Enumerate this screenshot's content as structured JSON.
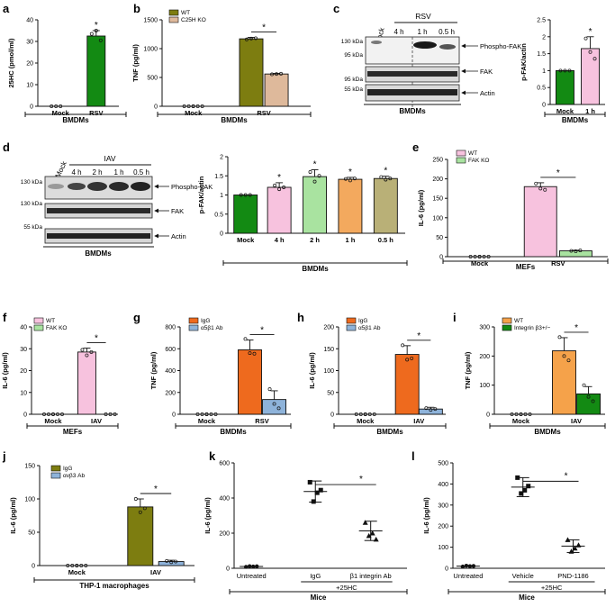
{
  "figure": {
    "panels": [
      {
        "id": "a",
        "label": "a"
      },
      {
        "id": "b",
        "label": "b"
      },
      {
        "id": "c",
        "label": "c"
      },
      {
        "id": "d",
        "label": "d"
      },
      {
        "id": "e",
        "label": "e"
      },
      {
        "id": "f",
        "label": "f"
      },
      {
        "id": "g",
        "label": "g"
      },
      {
        "id": "h",
        "label": "h"
      },
      {
        "id": "i",
        "label": "i"
      },
      {
        "id": "j",
        "label": "j"
      },
      {
        "id": "k",
        "label": "k"
      },
      {
        "id": "l",
        "label": "l"
      }
    ],
    "blots": {
      "c": {
        "group_header": "RSV",
        "lane_labels": [
          "Mock",
          "4 h",
          "1 h",
          "0.5 h"
        ],
        "kda_labels": [
          "130 kDa",
          "95 kDa",
          "95 kDa",
          "55 kDa"
        ],
        "band_labels": [
          "Phospho-FAK",
          "FAK",
          "Actin"
        ],
        "footer": "BMDMs"
      },
      "d": {
        "group_header": "IAV",
        "lane_labels": [
          "Mock",
          "4 h",
          "2 h",
          "1 h",
          "0.5 h"
        ],
        "kda_labels": [
          "130 kDa",
          "130 kDa",
          "55 kDa"
        ],
        "band_labels": [
          "Phospho-FAK",
          "FAK",
          "Actin"
        ],
        "footer": "BMDMs"
      }
    }
  },
  "chart_data": [
    {
      "panel": "a",
      "type": "bar",
      "ylabel": "25HC (pmol/ml)",
      "ylim": [
        0,
        40
      ],
      "ticks": [
        0,
        10,
        20,
        30,
        40
      ],
      "categories": [
        "Mock",
        "RSV"
      ],
      "xlabel": "BMDMs",
      "series": [
        {
          "name": "",
          "color": "#138a13",
          "values": [
            0,
            32.5
          ],
          "err": [
            0,
            2.5
          ],
          "points": [
            [
              0,
              0,
              0
            ],
            [
              33.5,
              35,
              30.5
            ]
          ]
        }
      ],
      "significance": "*"
    },
    {
      "panel": "b",
      "type": "bar",
      "ylabel": "TNF (pg/ml)",
      "ylim": [
        0,
        1500
      ],
      "ticks": [
        0,
        500,
        1000,
        1500
      ],
      "categories": [
        "Mock",
        "RSV"
      ],
      "xlabel": "BMDMs",
      "series": [
        {
          "name": "WT",
          "color": "#7d7d10",
          "values": [
            0,
            1170
          ],
          "err": [
            0,
            25
          ],
          "points": [
            [
              0,
              0,
              0
            ],
            [
              1160,
              1175,
              1180
            ]
          ]
        },
        {
          "name": "C25H KO",
          "color": "#deb99b",
          "values": [
            0,
            560
          ],
          "err": [
            0,
            10
          ],
          "points": [
            [
              0,
              0,
              0
            ],
            [
              555,
              560,
              565
            ]
          ]
        }
      ],
      "significance": "*"
    },
    {
      "panel": "c",
      "type": "bar",
      "ylabel": "p-FAK/actin",
      "ylim": [
        0,
        2.5
      ],
      "ticks": [
        0,
        0.5,
        1,
        1.5,
        2,
        2.5
      ],
      "categories": [
        "Mock",
        "1 h"
      ],
      "xlabel": "BMDMs",
      "series": [
        {
          "name": "",
          "color": [
            "#138a13",
            "#f7c2de"
          ],
          "values": [
            1,
            1.65
          ],
          "err": [
            0,
            0.35
          ],
          "points": [
            [
              1,
              1,
              1
            ],
            [
              1.95,
              1.55,
              1.35
            ]
          ]
        }
      ],
      "significance": "*"
    },
    {
      "panel": "d",
      "type": "bar",
      "ylabel": "p-FAK/actin",
      "ylim": [
        0,
        2
      ],
      "ticks": [
        0,
        0.5,
        1,
        1.5,
        2
      ],
      "categories": [
        "Mock",
        "4 h",
        "2 h",
        "1 h",
        "0.5 h"
      ],
      "xlabel": "BMDMs",
      "series": [
        {
          "name": "",
          "color": [
            "#138a13",
            "#f7c2de",
            "#a9e3a0",
            "#f3a95e",
            "#b9b077"
          ],
          "values": [
            1,
            1.2,
            1.48,
            1.41,
            1.43
          ],
          "err": [
            0,
            0.12,
            0.18,
            0.05,
            0.06
          ],
          "points": [
            [
              1,
              1,
              1
            ],
            [
              1.25,
              1.15,
              1.2
            ],
            [
              1.6,
              1.35,
              1.5
            ],
            [
              1.42,
              1.38,
              1.43
            ],
            [
              1.47,
              1.4,
              1.43
            ]
          ]
        }
      ],
      "significance": "*"
    },
    {
      "panel": "e",
      "type": "bar",
      "ylabel": "IL-6 (pg/ml)",
      "ylim": [
        0,
        250
      ],
      "ticks": [
        0,
        50,
        100,
        150,
        200,
        250
      ],
      "categories": [
        "Mock",
        "RSV"
      ],
      "xlabel": "MEFs",
      "series": [
        {
          "name": "WT",
          "color": "#f7c2de",
          "values": [
            0,
            180
          ],
          "err": [
            0,
            10
          ],
          "points": [
            [
              0,
              0,
              0
            ],
            [
              188,
              175,
              172
            ]
          ]
        },
        {
          "name": "FAK KO",
          "color": "#a9e3a0",
          "values": [
            0,
            15
          ],
          "err": [
            0,
            1.5
          ],
          "points": [
            [
              0,
              0,
              0
            ],
            [
              15,
              14,
              16
            ]
          ]
        }
      ],
      "significance": "*"
    },
    {
      "panel": "f",
      "type": "bar",
      "ylabel": "IL-6 (pg/ml)",
      "ylim": [
        0,
        40
      ],
      "ticks": [
        0,
        10,
        20,
        30,
        40
      ],
      "categories": [
        "Mock",
        "IAV"
      ],
      "xlabel": "MEFs",
      "series": [
        {
          "name": "WT",
          "color": "#f7c2de",
          "values": [
            0,
            28.5
          ],
          "err": [
            0,
            1.8
          ],
          "points": [
            [
              0,
              0,
              0
            ],
            [
              29.5,
              27,
              28.5
            ]
          ]
        },
        {
          "name": "FAK KO",
          "color": "#a9e3a0",
          "values": [
            0,
            0
          ],
          "err": [
            0,
            0
          ],
          "points": [
            [
              0,
              0,
              0
            ],
            [
              0,
              0,
              0
            ]
          ]
        }
      ],
      "significance": "*"
    },
    {
      "panel": "g",
      "type": "bar",
      "ylabel": "TNF (pg/ml)",
      "ylim": [
        0,
        800
      ],
      "ticks": [
        0,
        200,
        400,
        600,
        800
      ],
      "categories": [
        "Mock",
        "RSV"
      ],
      "xlabel": "BMDMs",
      "series": [
        {
          "name": "IgG",
          "color": "#ee6a1e",
          "values": [
            0,
            590
          ],
          "err": [
            0,
            90
          ],
          "points": [
            [
              0,
              0,
              0
            ],
            [
              690,
              560,
              555
            ]
          ]
        },
        {
          "name": "α5β1 Ab",
          "color": "#8eb3da",
          "values": [
            0,
            135
          ],
          "err": [
            0,
            80
          ],
          "points": [
            [
              0,
              0,
              0
            ],
            [
              230,
              95,
              55
            ]
          ]
        }
      ],
      "significance": "*"
    },
    {
      "panel": "h",
      "type": "bar",
      "ylabel": "IL-6 (pg/ml)",
      "ylim": [
        0,
        200
      ],
      "ticks": [
        0,
        50,
        100,
        150,
        200
      ],
      "categories": [
        "Mock",
        "IAV"
      ],
      "xlabel": "BMDMs",
      "series": [
        {
          "name": "IgG",
          "color": "#ee6a1e",
          "values": [
            0,
            137
          ],
          "err": [
            0,
            20
          ],
          "points": [
            [
              0,
              0,
              0
            ],
            [
              158,
              125,
              128
            ]
          ]
        },
        {
          "name": "α5β1 Ab",
          "color": "#8eb3da",
          "values": [
            0,
            12
          ],
          "err": [
            0,
            4
          ],
          "points": [
            [
              0,
              0,
              0
            ],
            [
              14,
              10,
              12
            ]
          ]
        }
      ],
      "significance": "*"
    },
    {
      "panel": "i",
      "type": "bar",
      "ylabel": "TNF (pg/ml)",
      "ylim": [
        0,
        300
      ],
      "ticks": [
        0,
        100,
        200,
        300
      ],
      "categories": [
        "Mock",
        "IAV"
      ],
      "xlabel": "BMDMs",
      "series": [
        {
          "name": "WT",
          "color": "#f5a24a",
          "values": [
            0,
            218
          ],
          "err": [
            0,
            45
          ],
          "points": [
            [
              0,
              0,
              0
            ],
            [
              265,
              200,
              185
            ]
          ]
        },
        {
          "name": "Integrin β3+/−",
          "color": "#138a13",
          "values": [
            0,
            70
          ],
          "err": [
            0,
            25
          ],
          "points": [
            [
              0,
              0,
              0
            ],
            [
              100,
              60,
              45
            ]
          ]
        }
      ],
      "significance": "*"
    },
    {
      "panel": "j",
      "type": "bar",
      "ylabel": "IL-6 (pg/ml)",
      "ylim": [
        0,
        150
      ],
      "ticks": [
        0,
        50,
        100,
        150
      ],
      "categories": [
        "Mock",
        "IAV"
      ],
      "xlabel": "THP-1 macrophages",
      "series": [
        {
          "name": "IgG",
          "color": "#7d7d10",
          "values": [
            0,
            88
          ],
          "err": [
            0,
            12
          ],
          "points": [
            [
              0,
              0,
              0
            ],
            [
              100,
              80,
              86
            ]
          ]
        },
        {
          "name": "αvβ3 Ab",
          "color": "#8eb3da",
          "values": [
            0,
            6
          ],
          "err": [
            0,
            2
          ],
          "points": [
            [
              0,
              0,
              0
            ],
            [
              7,
              5,
              6
            ]
          ]
        }
      ],
      "significance": "*"
    },
    {
      "panel": "k",
      "type": "scatter",
      "ylabel": "IL-6 (pg/ml)",
      "ylim": [
        0,
        600
      ],
      "ticks": [
        0,
        200,
        400,
        600
      ],
      "categories": [
        "Untreated",
        "IgG",
        "β1 integrin Ab"
      ],
      "group_label": "+25HC",
      "xlabel": "Mice",
      "markers": [
        "circle",
        "square",
        "triangle"
      ],
      "means": [
        10,
        437,
        213
      ],
      "sd": [
        3,
        60,
        55
      ],
      "points": [
        [
          8,
          10,
          12,
          11
        ],
        [
          490,
          430,
          380,
          445
        ],
        [
          260,
          200,
          185,
          165
        ]
      ],
      "significance": "*"
    },
    {
      "panel": "l",
      "type": "scatter",
      "ylabel": "IL-6 (pg/ml)",
      "ylim": [
        0,
        500
      ],
      "ticks": [
        0,
        100,
        200,
        300,
        400,
        500
      ],
      "categories": [
        "Untreated",
        "Vehicle",
        "PND-1186"
      ],
      "group_label": "+25HC",
      "xlabel": "Mice",
      "markers": [
        "circle",
        "square",
        "triangle"
      ],
      "means": [
        10,
        385,
        105
      ],
      "sd": [
        3,
        45,
        30
      ],
      "points": [
        [
          8,
          10,
          12,
          11
        ],
        [
          430,
          370,
          355,
          390
        ],
        [
          135,
          95,
          80,
          110
        ]
      ],
      "significance": "*"
    }
  ]
}
